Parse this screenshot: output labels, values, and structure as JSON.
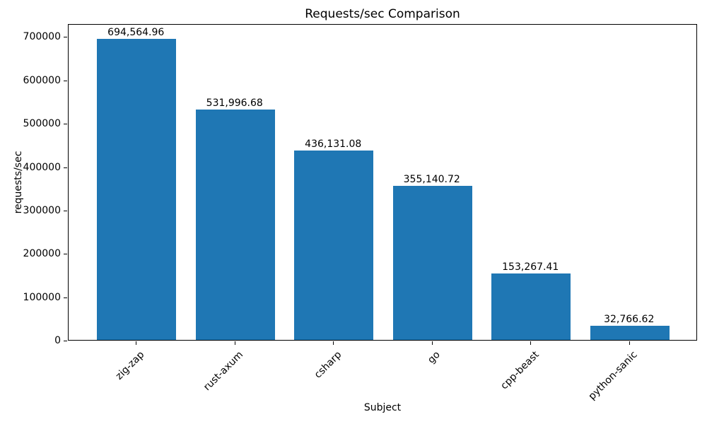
{
  "chart_data": {
    "type": "bar",
    "title": "Requests/sec Comparison",
    "xlabel": "Subject",
    "ylabel": "requests/sec",
    "categories": [
      "zig-zap",
      "rust-axum",
      "csharp",
      "go",
      "cpp-beast",
      "python-sanic"
    ],
    "values": [
      694564.96,
      531996.68,
      436131.08,
      355140.72,
      153267.41,
      32766.62
    ],
    "value_labels": [
      "694,564.96",
      "531,996.68",
      "436,131.08",
      "355,140.72",
      "153,267.41",
      "32,766.62"
    ],
    "yticks": [
      0,
      100000,
      200000,
      300000,
      400000,
      500000,
      600000,
      700000
    ],
    "ytick_labels": [
      "0",
      "100000",
      "200000",
      "300000",
      "400000",
      "500000",
      "600000",
      "700000"
    ],
    "ylim": [
      0,
      730000
    ],
    "bar_color": "#1f77b4",
    "grid": false,
    "legend": null,
    "x_tick_label_rotation_deg": 45
  }
}
